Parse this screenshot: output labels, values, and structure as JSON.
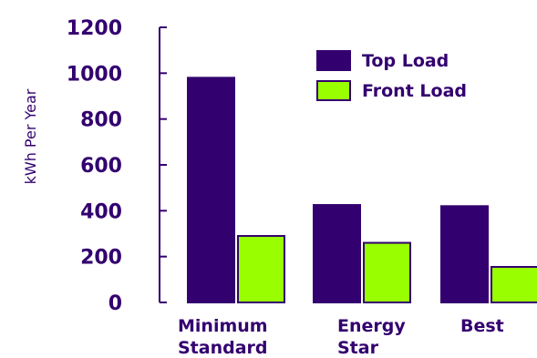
{
  "chart_data": {
    "type": "bar",
    "title": "",
    "xlabel": "",
    "ylabel": "kWh Per Year",
    "ylim": [
      0,
      1200
    ],
    "yticks": [
      0,
      200,
      400,
      600,
      800,
      1000,
      1200
    ],
    "grid": false,
    "legend_position": "top-right",
    "categories": [
      [
        "Minimum",
        "Standard"
      ],
      [
        "Energy",
        "Star"
      ],
      [
        "Best"
      ]
    ],
    "series": [
      {
        "name": "Top Load",
        "color": "#33006f",
        "values": [
          980,
          425,
          420
        ]
      },
      {
        "name": "Front Load",
        "color": "#99ff00",
        "values": [
          290,
          260,
          155
        ]
      }
    ],
    "bar_edge_color": "#33006f",
    "text_color": "#33006f"
  }
}
